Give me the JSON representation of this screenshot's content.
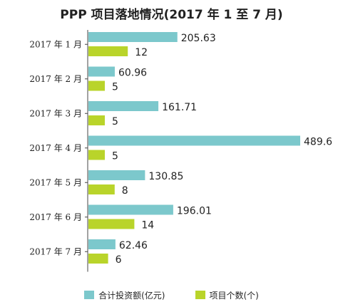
{
  "chart_data": {
    "type": "bar",
    "orientation": "horizontal",
    "title": "PPP 项目落地情况(2017 年 1 至 7 月)",
    "categories": [
      "2017 年 1 月",
      "2017 年 2 月",
      "2017 年 3 月",
      "2017 年 4 月",
      "2017 年 5 月",
      "2017 年 6 月",
      "2017 年 7 月"
    ],
    "series": [
      {
        "name": "合计投资额(亿元)",
        "color": "#7cc8cc",
        "values": [
          205.63,
          60.96,
          161.71,
          489.6,
          130.85,
          196.01,
          62.46
        ],
        "labels": [
          "205.63",
          "60.96",
          "161.71",
          "489.6",
          "130.85",
          "196.01",
          "62.46"
        ]
      },
      {
        "name": "项目个数(个)",
        "color": "#b9d42a",
        "values": [
          12,
          5,
          5,
          5,
          8,
          14,
          6
        ],
        "labels": [
          "12",
          "5",
          "5",
          "5",
          "8",
          "14",
          "6"
        ]
      }
    ],
    "xlim": [
      0,
      500
    ],
    "grid": false,
    "legend_position": "bottom"
  }
}
